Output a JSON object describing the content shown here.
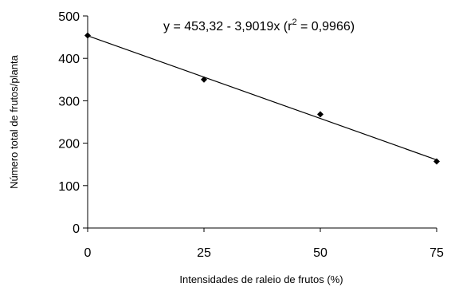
{
  "chart_data": {
    "type": "scatter",
    "xlabel": "Intensidades de raleio de frutos (%)",
    "ylabel": "Número total de frutos/planta",
    "xlim": [
      0,
      75
    ],
    "ylim": [
      0,
      500
    ],
    "x_ticks": [
      0,
      25,
      50,
      75
    ],
    "y_ticks": [
      0,
      100,
      200,
      300,
      400,
      500
    ],
    "grid": false,
    "series": [
      {
        "marker": "diamond",
        "x": [
          0,
          25,
          50,
          75
        ],
        "y": [
          454,
          350,
          268,
          157
        ]
      }
    ],
    "trendline": {
      "intercept": 453.32,
      "slope": -3.9019,
      "equation": {
        "prefix": "y = 453,32 - 3,9019x (r",
        "sup": "2",
        "suffix": " = 0,9966)"
      }
    }
  }
}
